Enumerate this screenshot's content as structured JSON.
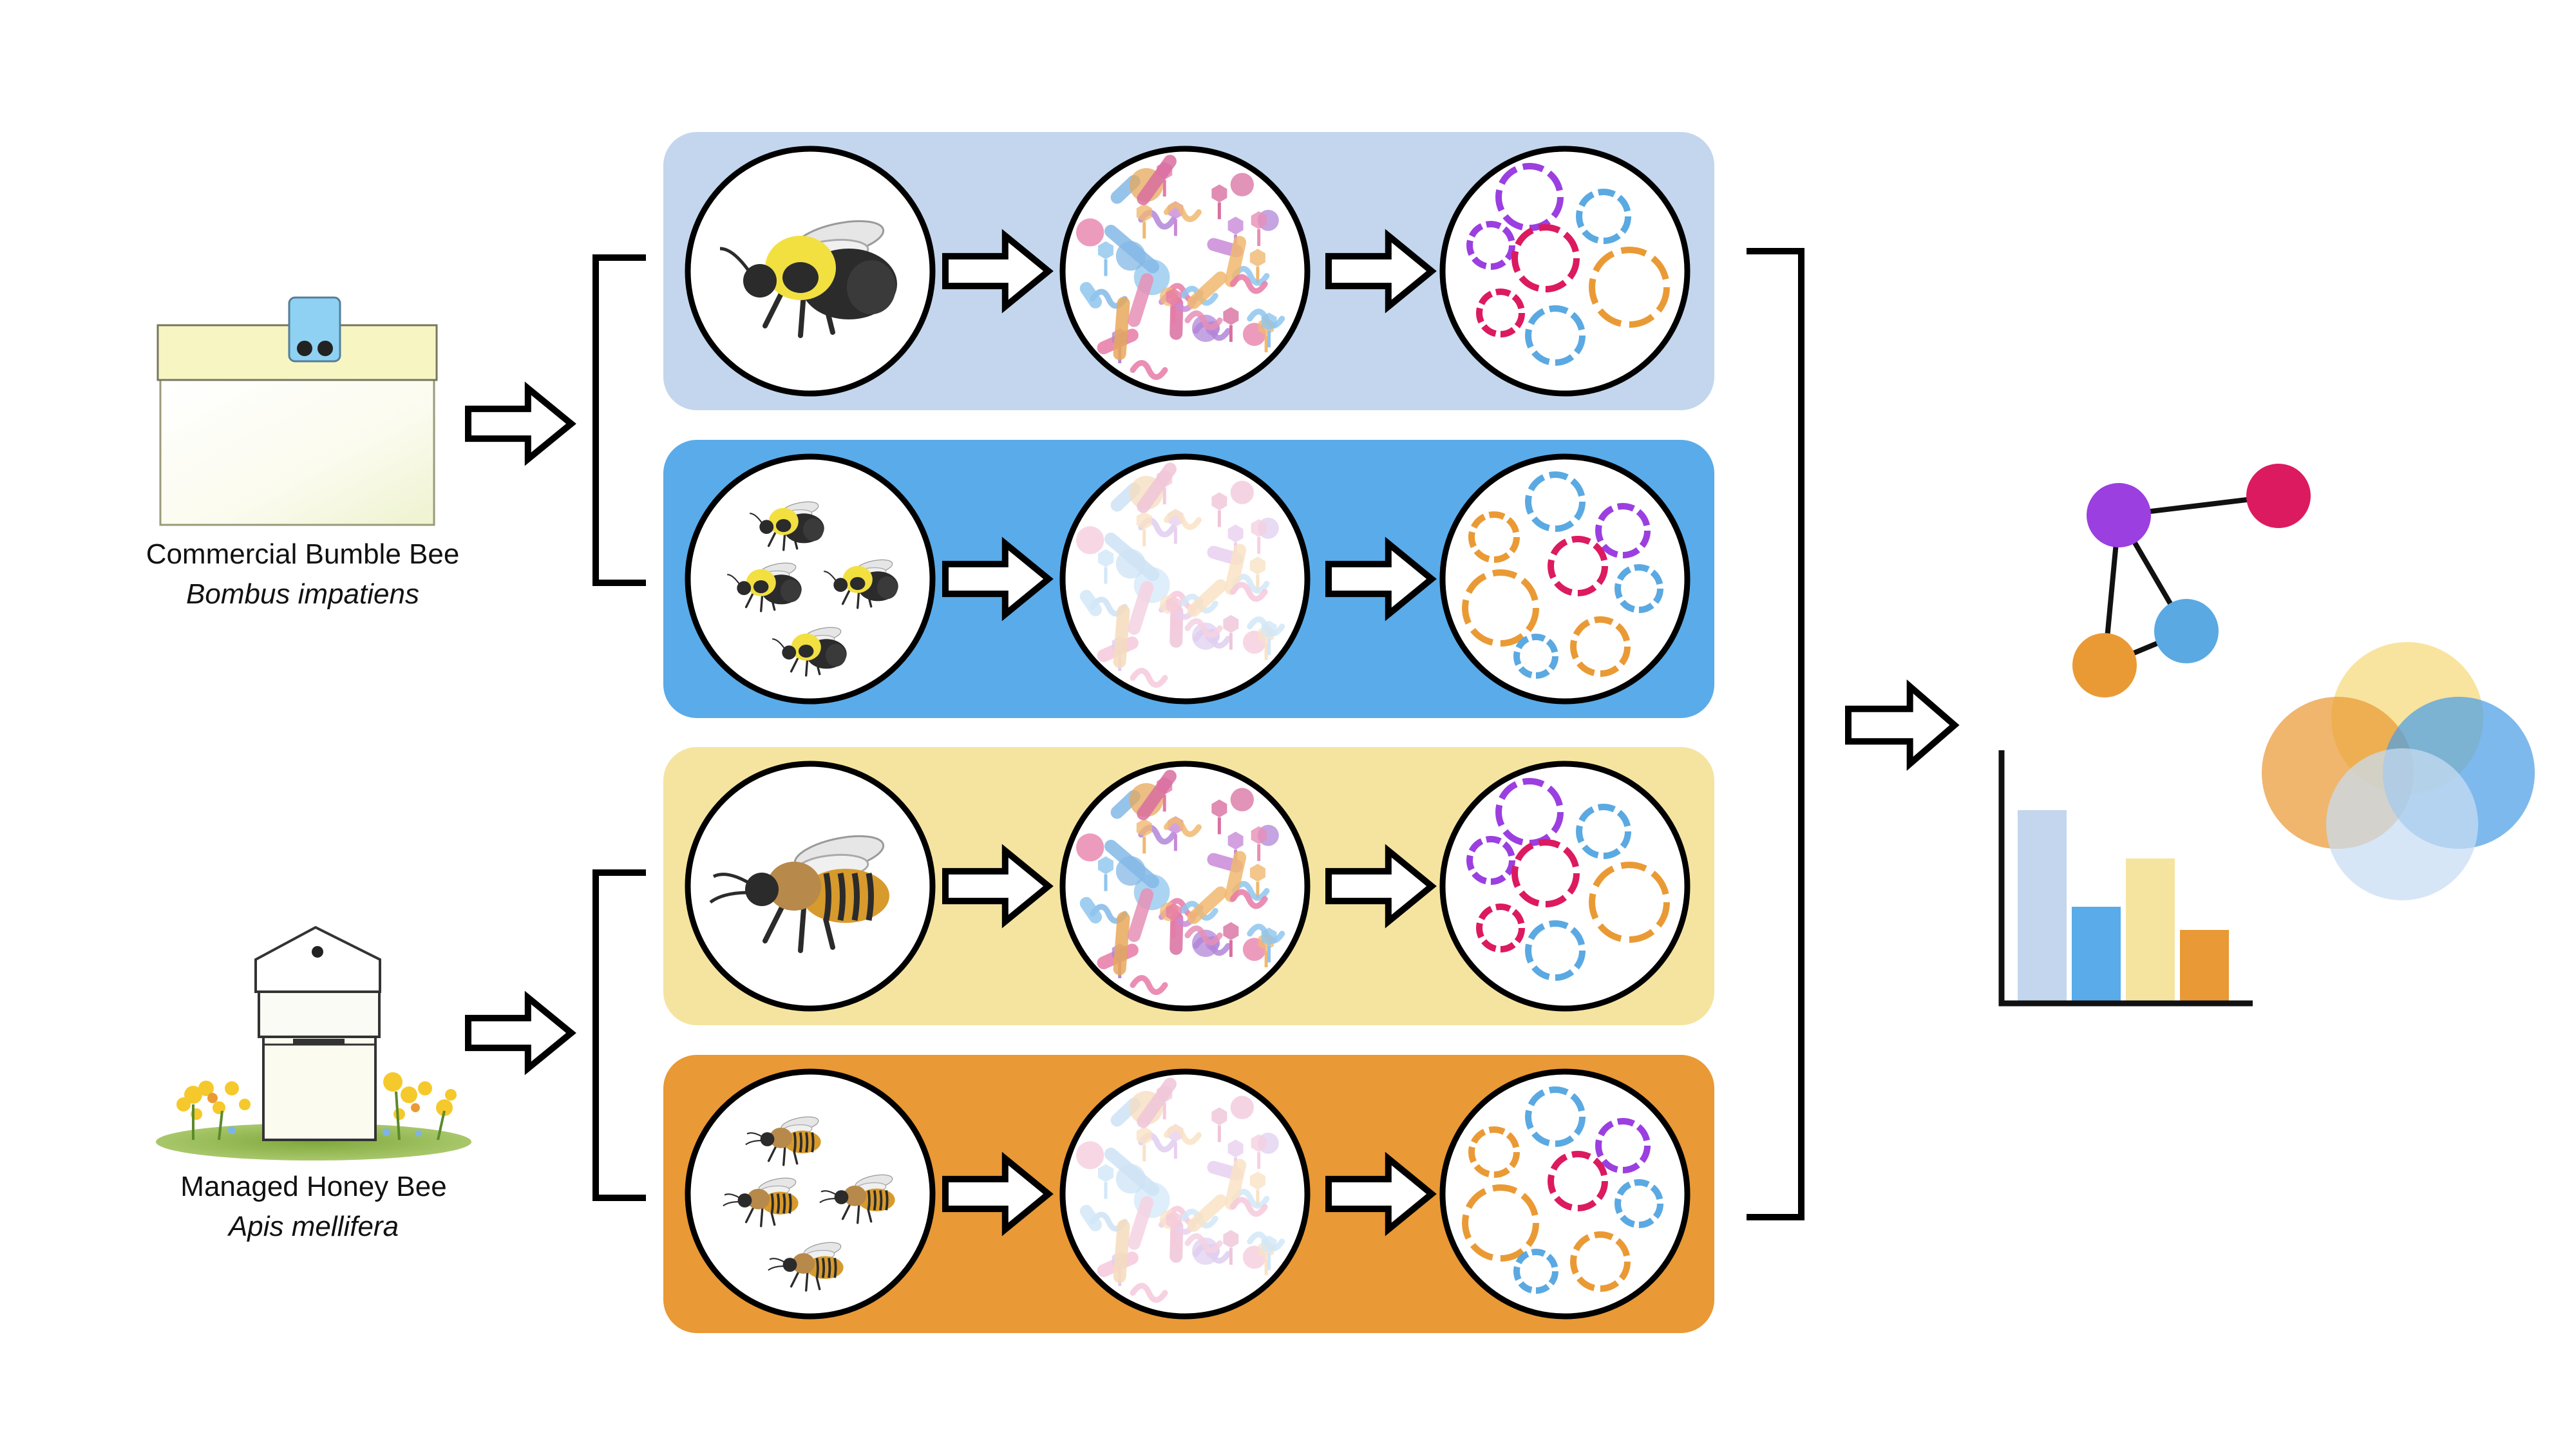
{
  "sources": [
    {
      "name": "Commercial Bumble Bee",
      "species": "Bombus impatiens",
      "bee": "bumble"
    },
    {
      "name": "Managed Honey Bee",
      "species": "Apis mellifera",
      "bee": "honey"
    }
  ],
  "rows": [
    {
      "id": "bumble-individual",
      "bee": "bumble",
      "count": "single",
      "color": "#c3d6ed",
      "microbe_opacity": 1
    },
    {
      "id": "bumble-pooled",
      "bee": "bumble",
      "count": "pooled",
      "color": "#5aabe9",
      "microbe_opacity": 0.4
    },
    {
      "id": "honey-individual",
      "bee": "honey",
      "count": "single",
      "color": "#f5e4a0",
      "microbe_opacity": 1
    },
    {
      "id": "honey-pooled",
      "bee": "honey",
      "count": "pooled",
      "color": "#e99935",
      "microbe_opacity": 0.4
    }
  ],
  "palette": {
    "purple": "#9b3fe0",
    "magenta": "#dc1a5f",
    "orange": "#ea9a35",
    "blue": "#5aa9e2"
  },
  "icons": [
    "bumble-bee-box-icon",
    "honey-bee-hive-icon",
    "bee-icon",
    "microbe-community-icon",
    "genome-bins-icon",
    "network-graph-icon",
    "bar-chart-icon",
    "venn-diagram-icon",
    "arrow-icon",
    "bracket-icon"
  ],
  "results": {
    "bar_values": [
      1.0,
      0.5,
      0.75,
      0.38
    ],
    "bar_colors": [
      "#c3d6ed",
      "#5aabe9",
      "#f5e4a0",
      "#e99935"
    ],
    "network_nodes": [
      "#9b3fe0",
      "#dc1a5f",
      "#5aa9e2",
      "#ea9a35"
    ],
    "venn_colors": [
      "#f5d978",
      "#ea9a35",
      "#4c9ee6",
      "#c8dcf2"
    ]
  }
}
